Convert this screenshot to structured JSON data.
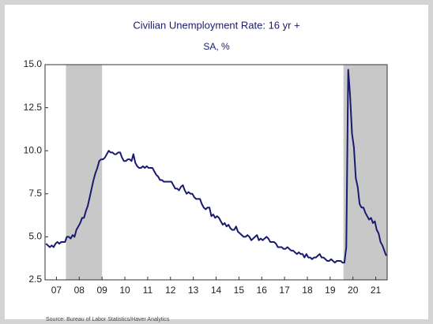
{
  "chart_data": {
    "type": "line",
    "title": "Civilian Unemployment Rate: 16 yr +",
    "subtitle": "SA, %",
    "source": "Source:  Bureau of Labor Statistics/Haver Analytics",
    "xlim": [
      2007,
      2022
    ],
    "ylim": [
      2.5,
      15
    ],
    "yticks": [
      {
        "value": 2.5,
        "label": "2.5"
      },
      {
        "value": 5,
        "label": "5.0"
      },
      {
        "value": 7.5,
        "label": "7.5"
      },
      {
        "value": 10,
        "label": "10.0"
      },
      {
        "value": 12.5,
        "label": "12.5"
      },
      {
        "value": 15,
        "label": "15.0"
      }
    ],
    "xticks": [
      {
        "value": 2007.5,
        "label": "07"
      },
      {
        "value": 2008.5,
        "label": "08"
      },
      {
        "value": 2009.5,
        "label": "09"
      },
      {
        "value": 2010.5,
        "label": "10"
      },
      {
        "value": 2011.5,
        "label": "11"
      },
      {
        "value": 2012.5,
        "label": "12"
      },
      {
        "value": 2013.5,
        "label": "13"
      },
      {
        "value": 2014.5,
        "label": "14"
      },
      {
        "value": 2015.5,
        "label": "15"
      },
      {
        "value": 2016.5,
        "label": "16"
      },
      {
        "value": 2017.5,
        "label": "17"
      },
      {
        "value": 2018.5,
        "label": "18"
      },
      {
        "value": 2019.5,
        "label": "19"
      },
      {
        "value": 2020.5,
        "label": "20"
      },
      {
        "value": 2021.5,
        "label": "21"
      }
    ],
    "recessions": [
      [
        2007.917,
        2009.5
      ],
      [
        2020.083,
        2022
      ]
    ],
    "recession_color": "#c8c8c8",
    "series": [
      {
        "name": "Unemployment rate",
        "color": "#1a1a6e",
        "x": [
          2007.042,
          2007.125,
          2007.208,
          2007.292,
          2007.375,
          2007.458,
          2007.542,
          2007.625,
          2007.708,
          2007.792,
          2007.875,
          2007.958,
          2008.042,
          2008.125,
          2008.208,
          2008.292,
          2008.375,
          2008.458,
          2008.542,
          2008.625,
          2008.708,
          2008.792,
          2008.875,
          2008.958,
          2009.042,
          2009.125,
          2009.208,
          2009.292,
          2009.375,
          2009.458,
          2009.542,
          2009.625,
          2009.708,
          2009.792,
          2009.875,
          2009.958,
          2010.042,
          2010.125,
          2010.208,
          2010.292,
          2010.375,
          2010.458,
          2010.542,
          2010.625,
          2010.708,
          2010.792,
          2010.875,
          2010.958,
          2011.042,
          2011.125,
          2011.208,
          2011.292,
          2011.375,
          2011.458,
          2011.542,
          2011.625,
          2011.708,
          2011.792,
          2011.875,
          2011.958,
          2012.042,
          2012.125,
          2012.208,
          2012.292,
          2012.375,
          2012.458,
          2012.542,
          2012.625,
          2012.708,
          2012.792,
          2012.875,
          2012.958,
          2013.042,
          2013.125,
          2013.208,
          2013.292,
          2013.375,
          2013.458,
          2013.542,
          2013.625,
          2013.708,
          2013.792,
          2013.875,
          2013.958,
          2014.042,
          2014.125,
          2014.208,
          2014.292,
          2014.375,
          2014.458,
          2014.542,
          2014.625,
          2014.708,
          2014.792,
          2014.875,
          2014.958,
          2015.042,
          2015.125,
          2015.208,
          2015.292,
          2015.375,
          2015.458,
          2015.542,
          2015.625,
          2015.708,
          2015.792,
          2015.875,
          2015.958,
          2016.042,
          2016.125,
          2016.208,
          2016.292,
          2016.375,
          2016.458,
          2016.542,
          2016.625,
          2016.708,
          2016.792,
          2016.875,
          2016.958,
          2017.042,
          2017.125,
          2017.208,
          2017.292,
          2017.375,
          2017.458,
          2017.542,
          2017.625,
          2017.708,
          2017.792,
          2017.875,
          2017.958,
          2018.042,
          2018.125,
          2018.208,
          2018.292,
          2018.375,
          2018.458,
          2018.542,
          2018.625,
          2018.708,
          2018.792,
          2018.875,
          2018.958,
          2019.042,
          2019.125,
          2019.208,
          2019.292,
          2019.375,
          2019.458,
          2019.542,
          2019.625,
          2019.708,
          2019.792,
          2019.875,
          2019.958,
          2020.042,
          2020.125,
          2020.208,
          2020.292,
          2020.375,
          2020.458,
          2020.542,
          2020.625,
          2020.708,
          2020.792,
          2020.875,
          2020.958,
          2021.042,
          2021.125,
          2021.208,
          2021.292,
          2021.375,
          2021.458,
          2021.542,
          2021.625,
          2021.708,
          2021.792,
          2021.875,
          2021.958
        ],
        "values": [
          4.6,
          4.5,
          4.4,
          4.5,
          4.4,
          4.6,
          4.7,
          4.6,
          4.7,
          4.7,
          4.7,
          5.0,
          5.0,
          4.9,
          5.1,
          5.0,
          5.4,
          5.6,
          5.8,
          6.1,
          6.1,
          6.5,
          6.8,
          7.3,
          7.8,
          8.3,
          8.7,
          9.0,
          9.4,
          9.5,
          9.5,
          9.6,
          9.8,
          10.0,
          9.9,
          9.9,
          9.8,
          9.8,
          9.9,
          9.9,
          9.6,
          9.4,
          9.4,
          9.5,
          9.5,
          9.4,
          9.8,
          9.3,
          9.1,
          9.0,
          9.0,
          9.1,
          9.0,
          9.1,
          9.0,
          9.0,
          9.0,
          8.8,
          8.6,
          8.5,
          8.3,
          8.3,
          8.2,
          8.2,
          8.2,
          8.2,
          8.2,
          8.0,
          7.8,
          7.8,
          7.7,
          7.9,
          8.0,
          7.7,
          7.5,
          7.6,
          7.5,
          7.5,
          7.3,
          7.2,
          7.2,
          7.2,
          6.9,
          6.7,
          6.6,
          6.7,
          6.7,
          6.2,
          6.3,
          6.1,
          6.2,
          6.1,
          5.9,
          5.7,
          5.8,
          5.6,
          5.7,
          5.5,
          5.4,
          5.4,
          5.6,
          5.3,
          5.2,
          5.1,
          5.0,
          5.0,
          5.1,
          5.0,
          4.8,
          4.9,
          5.0,
          5.1,
          4.8,
          4.9,
          4.8,
          4.9,
          5.0,
          4.9,
          4.7,
          4.7,
          4.7,
          4.6,
          4.4,
          4.4,
          4.4,
          4.3,
          4.3,
          4.4,
          4.3,
          4.2,
          4.2,
          4.1,
          4.0,
          4.1,
          4.0,
          4.0,
          3.8,
          4.0,
          3.8,
          3.8,
          3.7,
          3.8,
          3.8,
          3.9,
          4.0,
          3.8,
          3.8,
          3.7,
          3.6,
          3.6,
          3.7,
          3.6,
          3.5,
          3.6,
          3.6,
          3.6,
          3.5,
          3.5,
          4.4,
          14.7,
          13.2,
          11.0,
          10.2,
          8.4,
          7.9,
          6.9,
          6.7,
          6.7,
          6.4,
          6.2,
          6.0,
          6.1,
          5.8,
          5.9,
          5.4,
          5.2,
          4.7,
          4.5,
          4.2,
          3.9
        ]
      }
    ]
  }
}
